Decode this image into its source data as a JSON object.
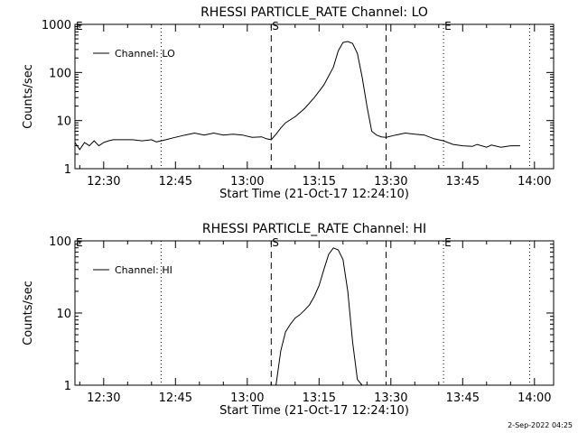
{
  "footer": {
    "timestamp": "2-Sep-2022 04:25"
  },
  "chart_data": [
    {
      "type": "line",
      "title": "RHESSI PARTICLE_RATE Channel: LO",
      "xlabel": "Start Time (21-Oct-17 12:24:10)",
      "ylabel": "Counts/sec",
      "yscale": "log",
      "ylim": [
        1,
        1000
      ],
      "xlim": [
        "12:24",
        "14:04"
      ],
      "yticks": [
        1,
        10,
        100,
        1000
      ],
      "ytick_labels": [
        "1",
        "10",
        "100",
        "1000"
      ],
      "xticks": [
        "12:30",
        "12:45",
        "13:00",
        "13:15",
        "13:30",
        "13:45",
        "14:00"
      ],
      "legend": {
        "position": "top-left",
        "label": "Channel: LO"
      },
      "markers": [
        {
          "x": "12:24",
          "style": "dotted",
          "label": "E"
        },
        {
          "x": "12:42",
          "style": "dotted",
          "label": ""
        },
        {
          "x": "13:05",
          "style": "dashed",
          "label": "S"
        },
        {
          "x": "13:29",
          "style": "dashed",
          "label": ""
        },
        {
          "x": "13:41",
          "style": "dotted",
          "label": "E"
        },
        {
          "x": "13:59",
          "style": "dotted",
          "label": ""
        }
      ],
      "series": [
        {
          "x": [
            "12:24",
            "12:25",
            "12:26",
            "12:27",
            "12:28",
            "12:29",
            "12:30",
            "12:31",
            "12:32",
            "12:34",
            "12:36",
            "12:38",
            "12:40",
            "12:41",
            "12:42",
            "12:43",
            "12:45",
            "12:47",
            "12:49",
            "12:51",
            "12:53",
            "12:55",
            "12:57",
            "12:59",
            "13:01",
            "13:03",
            "13:04",
            "13:05",
            "13:06",
            "13:07",
            "13:08",
            "13:10",
            "13:12",
            "13:14",
            "13:16",
            "13:18",
            "13:19",
            "13:20",
            "13:21",
            "13:22",
            "13:23",
            "13:24",
            "13:25",
            "13:26",
            "13:27",
            "13:28",
            "13:29",
            "13:31",
            "13:33",
            "13:35",
            "13:37",
            "13:39",
            "13:41",
            "13:43",
            "13:45",
            "13:47",
            "13:48",
            "13:50",
            "13:51",
            "13:53",
            "13:55",
            "13:57"
          ],
          "y": [
            3.5,
            2.5,
            3.5,
            3,
            3.8,
            3,
            3.5,
            3.8,
            4,
            4,
            4,
            3.8,
            4,
            3.6,
            3.8,
            4,
            4.5,
            5,
            5.5,
            5,
            5.5,
            5,
            5.2,
            5,
            4.5,
            4.6,
            4.2,
            4,
            5.2,
            7,
            9,
            12,
            18,
            30,
            55,
            130,
            280,
            420,
            440,
            400,
            250,
            80,
            20,
            6,
            5,
            4.6,
            4.5,
            5,
            5.5,
            5.2,
            5,
            4.2,
            3.8,
            3.2,
            3,
            2.9,
            3.2,
            2.8,
            3.1,
            2.8,
            3,
            3
          ]
        }
      ]
    },
    {
      "type": "line",
      "title": "RHESSI PARTICLE_RATE Channel: HI",
      "xlabel": "Start Time (21-Oct-17 12:24:10)",
      "ylabel": "Counts/sec",
      "yscale": "log",
      "ylim": [
        1,
        100
      ],
      "xlim": [
        "12:24",
        "14:04"
      ],
      "yticks": [
        1,
        10,
        100
      ],
      "ytick_labels": [
        "1",
        "10",
        "100"
      ],
      "xticks": [
        "12:30",
        "12:45",
        "13:00",
        "13:15",
        "13:30",
        "13:45",
        "14:00"
      ],
      "legend": {
        "position": "top-left",
        "label": "Channel: HI"
      },
      "markers": [
        {
          "x": "12:24",
          "style": "dotted",
          "label": "E"
        },
        {
          "x": "12:42",
          "style": "dotted",
          "label": ""
        },
        {
          "x": "13:05",
          "style": "dashed",
          "label": "S"
        },
        {
          "x": "13:29",
          "style": "dashed",
          "label": ""
        },
        {
          "x": "13:41",
          "style": "dotted",
          "label": "E"
        },
        {
          "x": "13:59",
          "style": "dotted",
          "label": ""
        }
      ],
      "series": [
        {
          "x": [
            "13:06",
            "13:07",
            "13:08",
            "13:09",
            "13:10",
            "13:11",
            "13:12",
            "13:13",
            "13:14",
            "13:15",
            "13:16",
            "13:17",
            "13:18",
            "13:19",
            "13:20",
            "13:21",
            "13:22",
            "13:23",
            "13:24"
          ],
          "y": [
            1,
            3,
            5.5,
            7,
            8.5,
            9.5,
            11,
            13,
            17,
            24,
            40,
            65,
            80,
            75,
            55,
            20,
            4,
            1.2,
            1
          ]
        }
      ]
    }
  ]
}
